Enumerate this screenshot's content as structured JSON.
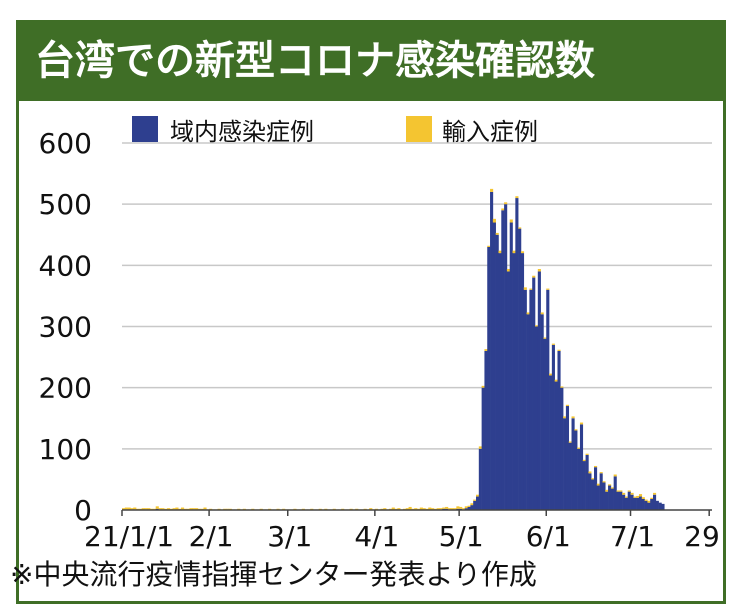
{
  "title": "台湾での新型コロナ感染確認数",
  "source_note": "※中央流行疫情指揮センター発表より作成",
  "colors": {
    "domestic": "#2e3f8f",
    "imported": "#f4c531",
    "header": "#3f6e26"
  },
  "chart_data": {
    "type": "bar",
    "stacked": true,
    "legend_position": "top",
    "grid": true,
    "ylim": [
      0,
      600
    ],
    "yticks": [
      0,
      100,
      200,
      300,
      400,
      500,
      600
    ],
    "ytick_labels": [
      "0",
      "100",
      "200",
      "300",
      "400",
      "500",
      "600"
    ],
    "x_start_date": "2021-01-01",
    "x_end_date": "2021-07-29",
    "xtick_labels": [
      "21/1/1",
      "2/1",
      "3/1",
      "4/1",
      "5/1",
      "6/1",
      "7/1",
      "29"
    ],
    "xtick_dates": [
      "2021-01-01",
      "2021-02-01",
      "2021-03-01",
      "2021-04-01",
      "2021-05-01",
      "2021-06-01",
      "2021-07-01",
      "2021-07-29"
    ],
    "series": [
      {
        "name": "域内感染症例",
        "color": "#2e3f8f",
        "values": [
          0,
          1,
          0,
          1,
          1,
          0,
          0,
          0,
          1,
          0,
          0,
          0,
          2,
          1,
          1,
          0,
          0,
          0,
          1,
          0,
          0,
          1,
          0,
          0,
          0,
          1,
          0,
          0,
          0,
          1,
          0,
          0,
          0,
          0,
          0,
          0,
          0,
          1,
          0,
          0,
          0,
          0,
          0,
          0,
          0,
          0,
          0,
          0,
          0,
          0,
          0,
          0,
          0,
          0,
          0,
          0,
          0,
          0,
          0,
          0,
          0,
          0,
          0,
          0,
          0,
          0,
          0,
          0,
          0,
          0,
          0,
          0,
          0,
          0,
          0,
          0,
          0,
          0,
          0,
          0,
          0,
          0,
          0,
          0,
          0,
          0,
          0,
          0,
          0,
          0,
          0,
          0,
          0,
          0,
          0,
          0,
          0,
          0,
          0,
          0,
          0,
          0,
          0,
          0,
          0,
          0,
          0,
          0,
          0,
          0,
          0,
          0,
          0,
          1,
          2,
          2,
          1,
          0,
          1,
          2,
          2,
          1,
          3,
          5,
          8,
          15,
          22,
          100,
          200,
          260,
          430,
          520,
          470,
          450,
          420,
          490,
          500,
          390,
          470,
          420,
          510,
          460,
          420,
          360,
          320,
          360,
          380,
          300,
          390,
          320,
          280,
          360,
          220,
          270,
          210,
          260,
          200,
          150,
          170,
          110,
          150,
          130,
          100,
          140,
          80,
          90,
          60,
          50,
          70,
          40,
          60,
          45,
          30,
          40,
          35,
          55,
          30,
          30,
          25,
          20,
          30,
          25,
          20,
          20,
          22,
          18,
          15,
          12,
          18,
          25,
          15,
          12,
          10
        ]
      },
      {
        "name": "輸入症例",
        "color": "#f4c531",
        "values": [
          3,
          3,
          4,
          2,
          3,
          2,
          2,
          3,
          2,
          3,
          2,
          2,
          4,
          2,
          2,
          2,
          3,
          2,
          2,
          4,
          2,
          3,
          2,
          2,
          3,
          2,
          3,
          2,
          2,
          3,
          1,
          2,
          1,
          1,
          2,
          1,
          2,
          1,
          2,
          1,
          1,
          2,
          1,
          2,
          1,
          1,
          2,
          1,
          1,
          2,
          1,
          1,
          2,
          1,
          1,
          2,
          1,
          2,
          1,
          1,
          1,
          2,
          1,
          1,
          2,
          1,
          1,
          2,
          1,
          1,
          2,
          1,
          2,
          1,
          1,
          2,
          1,
          1,
          2,
          1,
          1,
          2,
          1,
          2,
          1,
          1,
          2,
          1,
          3,
          1,
          2,
          1,
          2,
          3,
          1,
          2,
          4,
          2,
          3,
          1,
          2,
          3,
          5,
          2,
          3,
          2,
          4,
          3,
          2,
          4,
          3,
          2,
          3,
          2,
          2,
          3,
          2,
          3,
          2,
          4,
          3,
          2,
          3,
          2,
          3,
          2,
          3,
          4,
          3,
          3,
          2,
          5,
          6,
          3,
          4,
          3,
          3,
          4,
          5,
          4,
          3,
          2,
          3,
          4,
          3,
          2,
          3,
          2,
          4,
          3,
          2,
          2,
          3,
          2,
          3,
          2,
          2,
          3,
          2,
          2,
          3,
          2,
          2,
          3,
          2,
          2,
          3,
          2,
          2,
          3,
          2,
          2,
          3,
          2,
          2,
          3,
          2,
          2,
          3,
          2,
          2,
          3,
          2,
          3,
          4,
          3,
          2,
          3,
          2,
          3
        ]
      }
    ]
  }
}
